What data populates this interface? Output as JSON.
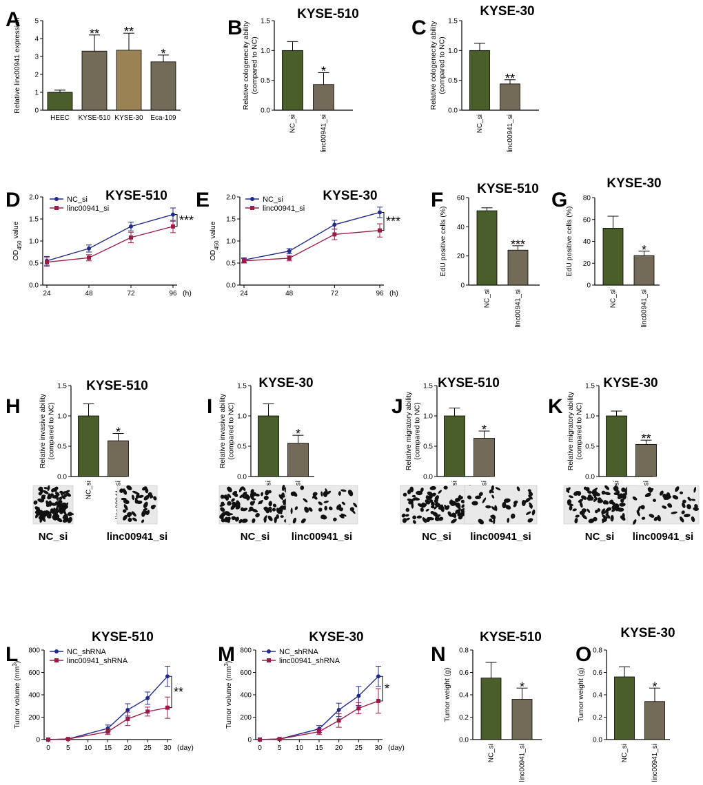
{
  "colors": {
    "green": "#4a5e2a",
    "grey": "#736b58",
    "tan": "#9a8255",
    "navy": "#1f2a8a",
    "maroon": "#9b1b48"
  },
  "chart_data": [
    {
      "id": "A",
      "type": "bar",
      "letter": "A",
      "title": "",
      "ylabel": "Relative linc00941 expression",
      "ylim": [
        0,
        5
      ],
      "yticks": [
        0,
        1,
        2,
        3,
        4,
        5
      ],
      "categories": [
        "HEEC",
        "KYSE-510",
        "KYSE-30",
        "Eca-109"
      ],
      "values": [
        1.0,
        3.3,
        3.35,
        2.7
      ],
      "errors": [
        0.12,
        0.9,
        0.95,
        0.38
      ],
      "significance": [
        "",
        "**",
        "**",
        "*"
      ],
      "bar_colors": [
        "green",
        "grey",
        "tan",
        "grey"
      ],
      "rotate_labels": false
    },
    {
      "id": "B",
      "type": "bar",
      "letter": "B",
      "title": "KYSE-510",
      "ylabel": "Relative cologenecity ability (compared to NC)",
      "ylim": [
        0,
        1.5
      ],
      "yticks": [
        0.0,
        0.5,
        1.0,
        1.5
      ],
      "categories": [
        "NC_si",
        "linc00941_si"
      ],
      "values": [
        1.0,
        0.43
      ],
      "errors": [
        0.15,
        0.2
      ],
      "significance": [
        "",
        "*"
      ],
      "bar_colors": [
        "green",
        "grey"
      ],
      "rotate_labels": true
    },
    {
      "id": "C",
      "type": "bar",
      "letter": "C",
      "title": "KYSE-30",
      "ylabel": "Relative cologenecity ability (compared to NC)",
      "ylim": [
        0,
        1.5
      ],
      "yticks": [
        0.0,
        0.5,
        1.0,
        1.5
      ],
      "categories": [
        "NC_si",
        "linc00941_si"
      ],
      "values": [
        1.0,
        0.44
      ],
      "errors": [
        0.12,
        0.07
      ],
      "significance": [
        "",
        "**"
      ],
      "bar_colors": [
        "green",
        "grey"
      ],
      "rotate_labels": true
    },
    {
      "id": "D",
      "type": "line",
      "letter": "D",
      "title": "KYSE-510",
      "ylabel": "OD450 value",
      "ylabel_main": "OD",
      "ylabel_sub": "450",
      "ylabel_rest": " value",
      "xlim": [
        24,
        96
      ],
      "ylim": [
        0,
        2.0
      ],
      "xticks": [
        24,
        48,
        72,
        96
      ],
      "yticks": [
        0.0,
        0.5,
        1.0,
        1.5,
        2.0
      ],
      "xunit": "(h)",
      "significance": "***",
      "series": [
        {
          "name": "NC_si",
          "color": "navy",
          "x": [
            24,
            48,
            72,
            96
          ],
          "y": [
            0.55,
            0.83,
            1.33,
            1.6
          ],
          "err": [
            0.1,
            0.08,
            0.1,
            0.15
          ]
        },
        {
          "name": "linc00941_si",
          "color": "maroon",
          "x": [
            24,
            48,
            72,
            96
          ],
          "y": [
            0.52,
            0.62,
            1.08,
            1.33
          ],
          "err": [
            0.1,
            0.07,
            0.12,
            0.14
          ]
        }
      ]
    },
    {
      "id": "E",
      "type": "line",
      "letter": "E",
      "title": "KYSE-30",
      "ylabel": "OD450 value",
      "ylabel_main": "OD",
      "ylabel_sub": "450",
      "ylabel_rest": " value",
      "xlim": [
        24,
        96
      ],
      "ylim": [
        0,
        2.0
      ],
      "xticks": [
        24,
        48,
        72,
        96
      ],
      "yticks": [
        0.0,
        0.5,
        1.0,
        1.5,
        2.0
      ],
      "xunit": "(h)",
      "significance": "***",
      "series": [
        {
          "name": "NC_si",
          "color": "navy",
          "x": [
            24,
            48,
            72,
            96
          ],
          "y": [
            0.57,
            0.77,
            1.37,
            1.65
          ],
          "err": [
            0.05,
            0.06,
            0.1,
            0.12
          ]
        },
        {
          "name": "linc00941_si",
          "color": "maroon",
          "x": [
            24,
            48,
            72,
            96
          ],
          "y": [
            0.55,
            0.61,
            1.15,
            1.24
          ],
          "err": [
            0.05,
            0.06,
            0.12,
            0.15
          ]
        }
      ]
    },
    {
      "id": "F",
      "type": "bar",
      "letter": "F",
      "title": "KYSE-510",
      "ylabel": "EdU positive cells (%)",
      "ylim": [
        0,
        60
      ],
      "yticks": [
        0,
        20,
        40,
        60
      ],
      "categories": [
        "NC_si",
        "linc00941_si"
      ],
      "values": [
        51,
        24
      ],
      "errors": [
        2,
        3
      ],
      "significance": [
        "",
        "***"
      ],
      "bar_colors": [
        "green",
        "grey"
      ],
      "rotate_labels": true
    },
    {
      "id": "G",
      "type": "bar",
      "letter": "G",
      "title": "KYSE-30",
      "ylabel": "EdU positive cells (%)",
      "ylim": [
        0,
        80
      ],
      "yticks": [
        0,
        20,
        40,
        60,
        80
      ],
      "categories": [
        "NC_si",
        "linc00941_si"
      ],
      "values": [
        52,
        27
      ],
      "errors": [
        11,
        4
      ],
      "significance": [
        "",
        "*"
      ],
      "bar_colors": [
        "green",
        "grey"
      ],
      "rotate_labels": true
    },
    {
      "id": "H",
      "type": "bar",
      "letter": "H",
      "title": "KYSE-510",
      "ylabel": "Relative invasive ability (compared to NC)",
      "ylim": [
        0,
        1.5
      ],
      "yticks": [
        0.0,
        0.5,
        1.0,
        1.5
      ],
      "categories": [
        "NC_si",
        "linc00941_si"
      ],
      "values": [
        1.0,
        0.59
      ],
      "errors": [
        0.2,
        0.12
      ],
      "significance": [
        "",
        "*"
      ],
      "bar_colors": [
        "green",
        "grey"
      ],
      "rotate_labels": true,
      "images": [
        "NC_si",
        "linc00941_si"
      ]
    },
    {
      "id": "I",
      "type": "bar",
      "letter": "I",
      "title": "KYSE-30",
      "ylabel": "Relative invasive ability (compared to NC)",
      "ylim": [
        0,
        1.5
      ],
      "yticks": [
        0.0,
        0.5,
        1.0,
        1.5
      ],
      "categories": [
        "NC_si",
        "linc00941_si"
      ],
      "values": [
        1.0,
        0.55
      ],
      "errors": [
        0.2,
        0.13
      ],
      "significance": [
        "",
        "*"
      ],
      "bar_colors": [
        "green",
        "grey"
      ],
      "rotate_labels": true,
      "images": [
        "NC_si",
        "linc00941_si"
      ]
    },
    {
      "id": "J",
      "type": "bar",
      "letter": "J",
      "title": "KYSE-510",
      "ylabel": "Relative migratory ability (compared to NC)",
      "ylim": [
        0,
        1.5
      ],
      "yticks": [
        0.0,
        0.5,
        1.0,
        1.5
      ],
      "categories": [
        "NC_si",
        "linc00941_si"
      ],
      "values": [
        1.0,
        0.63
      ],
      "errors": [
        0.13,
        0.12
      ],
      "significance": [
        "",
        "*"
      ],
      "bar_colors": [
        "green",
        "grey"
      ],
      "rotate_labels": true,
      "images": [
        "NC_si",
        "linc00941_si"
      ]
    },
    {
      "id": "K",
      "type": "bar",
      "letter": "K",
      "title": "KYSE-30",
      "ylabel": "Relative migratory ability (compared to NC)",
      "ylim": [
        0,
        1.5
      ],
      "yticks": [
        0.0,
        0.5,
        1.0,
        1.5
      ],
      "categories": [
        "NC_si",
        "linc00941_si"
      ],
      "values": [
        1.0,
        0.53
      ],
      "errors": [
        0.08,
        0.07
      ],
      "significance": [
        "",
        "**"
      ],
      "bar_colors": [
        "green",
        "grey"
      ],
      "rotate_labels": true,
      "images": [
        "NC_si",
        "linc00941_si"
      ]
    },
    {
      "id": "L",
      "type": "line",
      "letter": "L",
      "title": "KYSE-510",
      "ylabel": "Tumor volume (mm3)",
      "ylabel_main": "Tumor volume (mm",
      "ylabel_sup": "3",
      "ylabel_rest": ")",
      "xlim": [
        0,
        30
      ],
      "ylim": [
        0,
        800
      ],
      "xticks": [
        0,
        5,
        10,
        15,
        20,
        25,
        30
      ],
      "yticks": [
        0,
        200,
        400,
        600,
        800
      ],
      "xunit": "(day)",
      "significance": "**",
      "series": [
        {
          "name": "NC_shRNA",
          "color": "navy",
          "x": [
            0,
            5,
            15,
            20,
            25,
            30
          ],
          "y": [
            0,
            5,
            100,
            265,
            370,
            565
          ],
          "err": [
            3,
            5,
            30,
            55,
            55,
            90
          ]
        },
        {
          "name": "linc00941_shRNA",
          "color": "maroon",
          "x": [
            0,
            5,
            15,
            20,
            25,
            30
          ],
          "y": [
            0,
            5,
            70,
            185,
            250,
            285
          ],
          "err": [
            3,
            5,
            25,
            60,
            40,
            95
          ]
        }
      ]
    },
    {
      "id": "M",
      "type": "line",
      "letter": "M",
      "title": "KYSE-30",
      "ylabel": "Tumor volume (mm3)",
      "ylabel_main": "Tumor volume (mm",
      "ylabel_sup": "3",
      "ylabel_rest": ")",
      "xlim": [
        0,
        30
      ],
      "ylim": [
        0,
        800
      ],
      "xticks": [
        0,
        5,
        10,
        15,
        20,
        25,
        30
      ],
      "yticks": [
        0,
        200,
        400,
        600,
        800
      ],
      "xunit": "(day)",
      "significance": "*",
      "series": [
        {
          "name": "NC_shRNA",
          "color": "navy",
          "x": [
            0,
            5,
            15,
            20,
            25,
            30
          ],
          "y": [
            0,
            5,
            95,
            265,
            390,
            565
          ],
          "err": [
            3,
            5,
            30,
            60,
            85,
            90
          ]
        },
        {
          "name": "linc00941_shRNA",
          "color": "maroon",
          "x": [
            0,
            5,
            15,
            20,
            25,
            30
          ],
          "y": [
            0,
            5,
            70,
            170,
            280,
            345
          ],
          "err": [
            3,
            5,
            25,
            60,
            50,
            110
          ]
        }
      ]
    },
    {
      "id": "N",
      "type": "bar",
      "letter": "N",
      "title": "KYSE-510",
      "ylabel": "Tumor weight (g)",
      "ylim": [
        0,
        0.8
      ],
      "yticks": [
        0.0,
        0.2,
        0.4,
        0.6,
        0.8
      ],
      "categories": [
        "NC_si",
        "linc00941_si"
      ],
      "values": [
        0.55,
        0.36
      ],
      "errors": [
        0.14,
        0.1
      ],
      "significance": [
        "",
        "*"
      ],
      "bar_colors": [
        "green",
        "grey"
      ],
      "rotate_labels": true
    },
    {
      "id": "O",
      "type": "bar",
      "letter": "O",
      "title": "KYSE-30",
      "ylabel": "Tumor weight (g)",
      "ylim": [
        0,
        0.8
      ],
      "yticks": [
        0.0,
        0.2,
        0.4,
        0.6,
        0.8
      ],
      "categories": [
        "NC_si",
        "linc00941_si"
      ],
      "values": [
        0.56,
        0.34
      ],
      "errors": [
        0.09,
        0.12
      ],
      "significance": [
        "",
        "*"
      ],
      "bar_colors": [
        "green",
        "grey"
      ],
      "rotate_labels": true
    }
  ]
}
